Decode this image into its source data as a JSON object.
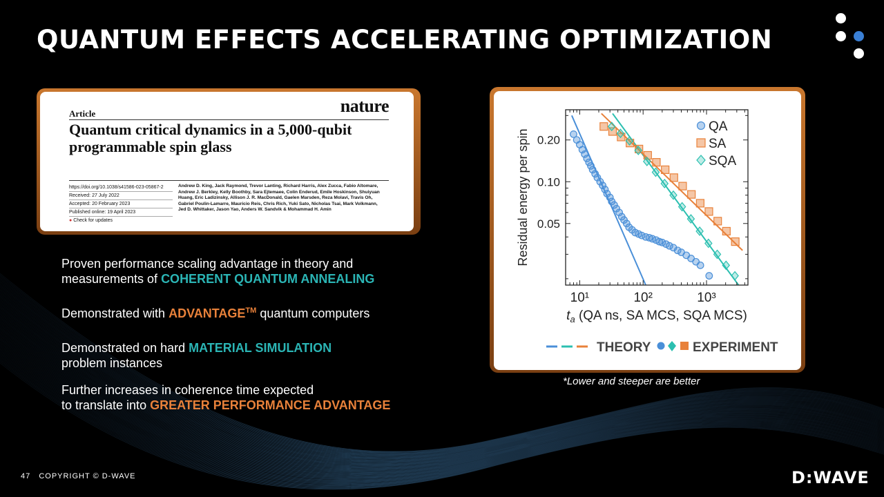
{
  "slide": {
    "title": "QUANTUM EFFECTS ACCELERATING OPTIMIZATION",
    "page_number": "47",
    "copyright": "COPYRIGHT © D-WAVE",
    "brand": "D:WAVE",
    "note": "*Lower and steeper are better"
  },
  "paper": {
    "article_label": "Article",
    "journal": "nature",
    "title": "Quantum critical dynamics in a 5,000-qubit programmable spin glass",
    "doi": "https://doi.org/10.1038/s41586-023-05867-2",
    "received": "Received: 27 July 2022",
    "accepted": "Accepted: 20 February 2023",
    "published": "Published online: 19 April 2023",
    "check": "Check for updates",
    "authors": "Andrew D. King, Jack Raymond, Trevor Lanting, Richard Harris, Alex Zucca, Fabio Altomare, Andrew J. Berkley, Kelly Boothby, Sara Ejtemaee, Colin Enderud, Emile Hoskinson, Shuiyuan Huang, Eric Ladizinsky, Allison J. R. MacDonald, Gaelen Marsden, Reza Molavi, Travis Oh, Gabriel Poulin-Lamarre, Mauricio Reis, Chris Rich, Yuki Sato, Nicholas Tsai, Mark Volkmann, Jed D. Whittaker, Jason Yao, Anders W. Sandvik & Mohammad H. Amin"
  },
  "bullets": {
    "b1_pre": "Proven performance scaling advantage in theory and measurements of ",
    "b1_hl": "COHERENT QUANTUM ANNEALING",
    "b2_pre": "Demonstrated with ",
    "b2_hl": "ADVANTAGE",
    "b2_sup": "TM",
    "b2_post": " quantum computers",
    "b3_pre": "Demonstrated on hard ",
    "b3_hl": "MATERIAL SIMULATION",
    "b3_post": "problem instances",
    "b4_pre": "Further increases in coherence time expected",
    "b4_pre2": "to translate into ",
    "b4_hl": "GREATER PERFORMANCE ADVANTAGE"
  },
  "colors": {
    "teal": "#2bb5b5",
    "orange": "#e8813a",
    "qa": "#4a8fd8",
    "sa": "#e8813a",
    "sqa": "#2bbfb0"
  },
  "chart_data": {
    "type": "scatter",
    "xlabel_var": "t",
    "xlabel_sub": "a",
    "xlabel_rest": " (QA ns, SA MCS, SQA MCS)",
    "ylabel": "Residual energy per spin",
    "xscale": "log",
    "yscale": "log",
    "xlim": [
      6,
      4500
    ],
    "ylim": [
      0.018,
      0.33
    ],
    "x_ticks": [
      {
        "value": 10,
        "label": "10¹"
      },
      {
        "value": 100,
        "label": "10²"
      },
      {
        "value": 1000,
        "label": "10³"
      }
    ],
    "y_ticks": [
      {
        "value": 0.2,
        "label": "0.20"
      },
      {
        "value": 0.1,
        "label": "0.10"
      },
      {
        "value": 0.05,
        "label": "0.05"
      }
    ],
    "legend_position": "top-right",
    "series": [
      {
        "name": "QA",
        "marker": "circle",
        "color": "#4a8fd8",
        "points": [
          [
            8,
            0.22
          ],
          [
            9,
            0.2
          ],
          [
            10,
            0.185
          ],
          [
            11,
            0.17
          ],
          [
            12,
            0.158
          ],
          [
            13,
            0.147
          ],
          [
            14,
            0.138
          ],
          [
            15,
            0.13
          ],
          [
            16,
            0.122
          ],
          [
            17.5,
            0.114
          ],
          [
            19,
            0.107
          ],
          [
            21,
            0.1
          ],
          [
            23,
            0.094
          ],
          [
            25,
            0.088
          ],
          [
            27,
            0.082
          ],
          [
            30,
            0.077
          ],
          [
            32,
            0.072
          ],
          [
            35,
            0.068
          ],
          [
            38,
            0.064
          ],
          [
            42,
            0.06
          ],
          [
            46,
            0.056
          ],
          [
            50,
            0.053
          ],
          [
            55,
            0.05
          ],
          [
            60,
            0.047
          ],
          [
            67,
            0.045
          ],
          [
            75,
            0.043
          ],
          [
            85,
            0.042
          ],
          [
            95,
            0.041
          ],
          [
            110,
            0.04
          ],
          [
            125,
            0.0395
          ],
          [
            140,
            0.0388
          ],
          [
            160,
            0.038
          ],
          [
            180,
            0.037
          ],
          [
            200,
            0.0365
          ],
          [
            230,
            0.0355
          ],
          [
            260,
            0.0345
          ],
          [
            300,
            0.0335
          ],
          [
            350,
            0.032
          ],
          [
            400,
            0.031
          ],
          [
            480,
            0.0295
          ],
          [
            570,
            0.028
          ],
          [
            680,
            0.0265
          ],
          [
            800,
            0.025
          ],
          [
            1100,
            0.021
          ]
        ]
      },
      {
        "name": "SA",
        "marker": "square",
        "color": "#e8813a",
        "points": [
          [
            24,
            0.25
          ],
          [
            33,
            0.23
          ],
          [
            45,
            0.21
          ],
          [
            62,
            0.19
          ],
          [
            86,
            0.172
          ],
          [
            118,
            0.155
          ],
          [
            162,
            0.138
          ],
          [
            223,
            0.122
          ],
          [
            306,
            0.107
          ],
          [
            420,
            0.093
          ],
          [
            578,
            0.081
          ],
          [
            795,
            0.07
          ],
          [
            1090,
            0.061
          ],
          [
            1500,
            0.052
          ],
          [
            2060,
            0.044
          ],
          [
            2840,
            0.037
          ]
        ]
      },
      {
        "name": "SQA",
        "marker": "diamond",
        "color": "#2bbfb0",
        "points": [
          [
            32,
            0.25
          ],
          [
            44,
            0.223
          ],
          [
            61,
            0.197
          ],
          [
            84,
            0.168
          ],
          [
            115,
            0.14
          ],
          [
            158,
            0.117
          ],
          [
            218,
            0.097
          ],
          [
            300,
            0.08
          ],
          [
            412,
            0.066
          ],
          [
            567,
            0.054
          ],
          [
            780,
            0.044
          ],
          [
            1073,
            0.036
          ],
          [
            1475,
            0.03
          ],
          [
            2030,
            0.025
          ],
          [
            2800,
            0.021
          ]
        ]
      }
    ],
    "theory_lines": [
      {
        "series": "QA",
        "color": "#4a8fd8",
        "points": [
          [
            7.5,
            0.3
          ],
          [
            110,
            0.018
          ]
        ]
      },
      {
        "series": "SQA",
        "color": "#2bbfb0",
        "points": [
          [
            33,
            0.31
          ],
          [
            3200,
            0.018
          ]
        ]
      },
      {
        "series": "SA",
        "color": "#e8813a",
        "points": [
          [
            22,
            0.31
          ],
          [
            3700,
            0.032
          ]
        ]
      }
    ],
    "bottom_legend": {
      "theory": "THEORY",
      "experiment": "EXPERIMENT"
    }
  }
}
